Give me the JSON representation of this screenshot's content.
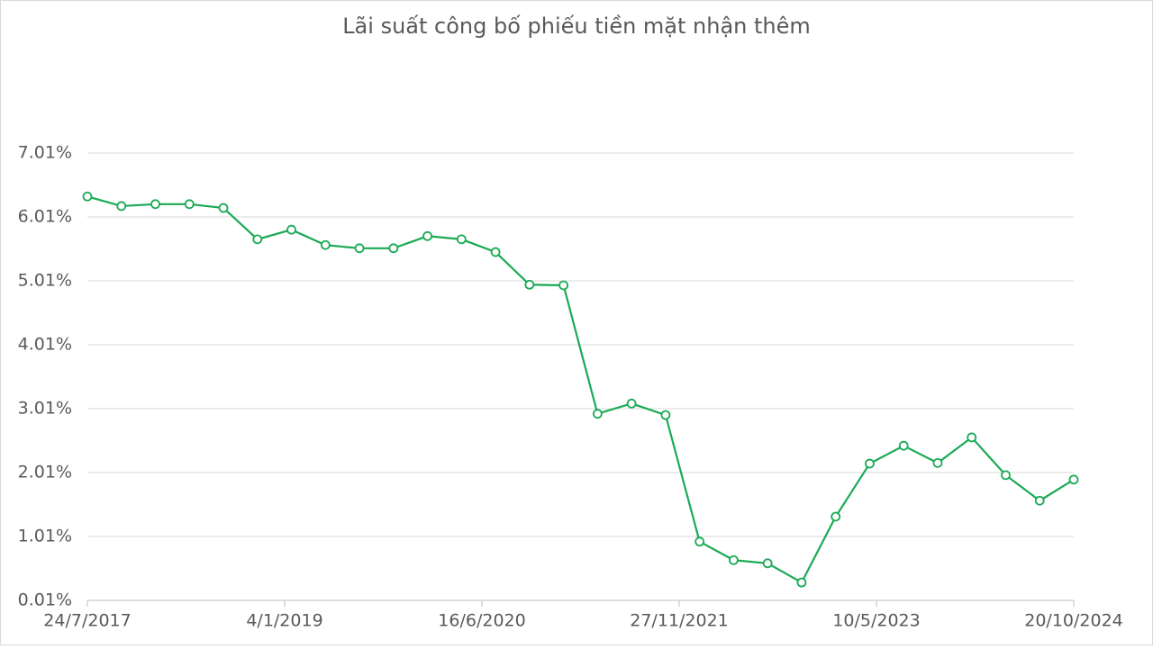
{
  "chart_data": {
    "type": "line",
    "title": "Lãi suất công bố phiếu tiền mặt nhận thêm",
    "x": [
      null,
      null,
      null,
      null,
      null,
      null,
      null,
      null,
      null,
      null,
      null,
      null,
      null,
      null,
      null,
      null,
      null,
      null,
      null,
      null,
      null,
      null,
      null,
      null,
      null,
      null,
      null,
      null,
      null,
      null
    ],
    "series": [
      {
        "color": "#1aaa55",
        "values": [
          6.33,
          6.18,
          6.21,
          6.21,
          6.15,
          5.66,
          5.81,
          5.57,
          5.52,
          5.52,
          5.71,
          5.66,
          5.46,
          4.95,
          4.94,
          2.93,
          3.09,
          2.91,
          0.93,
          0.64,
          0.59,
          0.29,
          1.32,
          2.15,
          2.43,
          2.16,
          2.56,
          1.97,
          1.57,
          1.9
        ]
      }
    ],
    "xlim": [
      "24/7/2017",
      "20/10/2024"
    ],
    "xticks": [
      "24/7/2017",
      "4/1/2019",
      "16/6/2020",
      "27/11/2021",
      "10/5/2023",
      "20/10/2024"
    ],
    "ylim": [
      0.01,
      7.01
    ],
    "yticks": [
      {
        "value": 0.01,
        "label": "0.01%"
      },
      {
        "value": 1.01,
        "label": "1.01%"
      },
      {
        "value": 2.01,
        "label": "2.01%"
      },
      {
        "value": 3.01,
        "label": "3.01%"
      },
      {
        "value": 4.01,
        "label": "4.01%"
      },
      {
        "value": 5.01,
        "label": "5.01%"
      },
      {
        "value": 6.01,
        "label": "6.01%"
      },
      {
        "value": 7.01,
        "label": "7.01%"
      }
    ],
    "grid": true
  }
}
